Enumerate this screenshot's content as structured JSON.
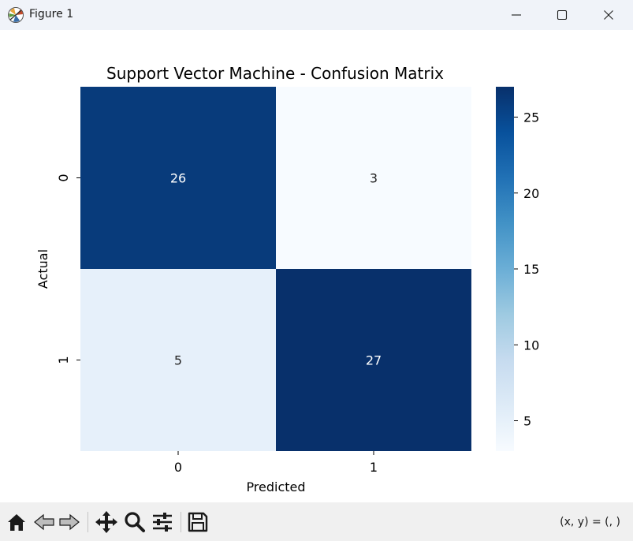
{
  "window": {
    "title": "Figure 1",
    "app_icon": "matplotlib-icon",
    "controls": [
      "minimize-icon",
      "maximize-icon",
      "close-icon"
    ]
  },
  "chart_data": {
    "type": "heatmap",
    "title": "Support Vector Machine - Confusion Matrix",
    "xlabel": "Predicted",
    "ylabel": "Actual",
    "x_categories": [
      "0",
      "1"
    ],
    "y_categories": [
      "0",
      "1"
    ],
    "matrix": [
      [
        26,
        3
      ],
      [
        5,
        27
      ]
    ],
    "colormap": "Blues",
    "vmin": 3,
    "vmax": 27,
    "colorbar_ticks": [
      5,
      10,
      15,
      20,
      25
    ],
    "annot_colors": {
      "on_dark": "#ffffff",
      "on_light": "#262626"
    }
  },
  "toolbar": {
    "buttons": [
      {
        "name": "home-button",
        "icon": "home-icon"
      },
      {
        "name": "back-button",
        "icon": "back-arrow-icon"
      },
      {
        "name": "forward-button",
        "icon": "forward-arrow-icon"
      },
      {
        "name": "pan-button",
        "icon": "move-icon"
      },
      {
        "name": "zoom-button",
        "icon": "zoom-icon"
      },
      {
        "name": "configure-button",
        "icon": "sliders-icon"
      },
      {
        "name": "save-button",
        "icon": "save-icon"
      }
    ],
    "coordinates_text": "(x, y) = (, )"
  }
}
